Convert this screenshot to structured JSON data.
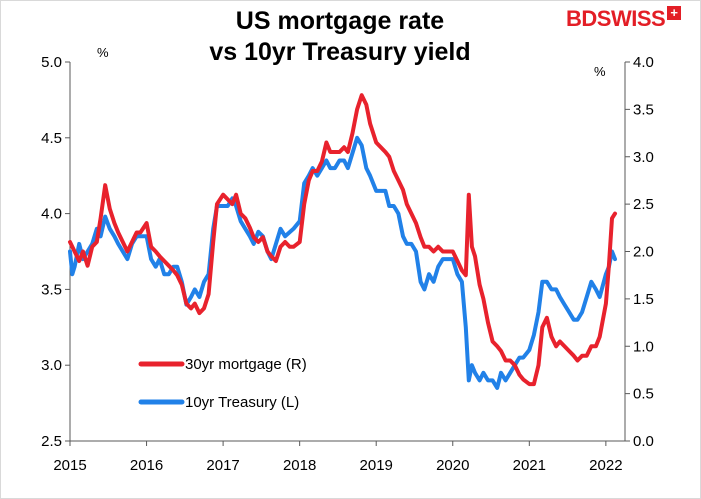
{
  "title_lines": [
    "US mortgage rate",
    "vs 10yr Treasury yield"
  ],
  "brand": {
    "text": "BDSWISS",
    "plus": "+",
    "color": "#e31e26"
  },
  "chart_data": {
    "type": "line",
    "title": "US mortgage rate vs 10yr Treasury yield",
    "left_axis": {
      "unit": "%",
      "range": [
        2.5,
        5.0
      ],
      "ticks": [
        "2.5",
        "3.0",
        "3.5",
        "4.0",
        "4.5",
        "5.0"
      ]
    },
    "right_axis": {
      "unit": "%",
      "range": [
        0.0,
        4.0
      ],
      "ticks": [
        "0.0",
        "0.5",
        "1.0",
        "1.5",
        "2.0",
        "2.5",
        "3.0",
        "3.5",
        "4.0"
      ]
    },
    "x_axis": {
      "range": [
        2015,
        2022.25
      ],
      "ticks": [
        "2015",
        "2016",
        "2017",
        "2018",
        "2019",
        "2020",
        "2021",
        "2022"
      ]
    },
    "grid": false,
    "legend_placement": "lower-left",
    "series": [
      {
        "name": "30yr mortgage (R)",
        "axis": "right",
        "color": "#e8222d",
        "points": [
          [
            2015.0,
            2.1
          ],
          [
            2015.06,
            2.0
          ],
          [
            2015.12,
            1.9
          ],
          [
            2015.17,
            2.0
          ],
          [
            2015.23,
            1.85
          ],
          [
            2015.29,
            2.05
          ],
          [
            2015.35,
            2.1
          ],
          [
            2015.4,
            2.35
          ],
          [
            2015.46,
            2.7
          ],
          [
            2015.52,
            2.45
          ],
          [
            2015.58,
            2.3
          ],
          [
            2015.63,
            2.2
          ],
          [
            2015.69,
            2.1
          ],
          [
            2015.75,
            2.0
          ],
          [
            2015.81,
            2.1
          ],
          [
            2015.87,
            2.2
          ],
          [
            2015.92,
            2.2
          ],
          [
            2016.0,
            2.3
          ],
          [
            2016.06,
            2.05
          ],
          [
            2016.12,
            2.0
          ],
          [
            2016.17,
            1.95
          ],
          [
            2016.23,
            1.9
          ],
          [
            2016.29,
            1.85
          ],
          [
            2016.35,
            1.8
          ],
          [
            2016.4,
            1.75
          ],
          [
            2016.46,
            1.65
          ],
          [
            2016.52,
            1.45
          ],
          [
            2016.58,
            1.4
          ],
          [
            2016.63,
            1.45
          ],
          [
            2016.69,
            1.35
          ],
          [
            2016.75,
            1.4
          ],
          [
            2016.81,
            1.55
          ],
          [
            2016.87,
            2.1
          ],
          [
            2016.92,
            2.5
          ],
          [
            2017.0,
            2.6
          ],
          [
            2017.06,
            2.55
          ],
          [
            2017.12,
            2.5
          ],
          [
            2017.17,
            2.6
          ],
          [
            2017.23,
            2.4
          ],
          [
            2017.29,
            2.35
          ],
          [
            2017.35,
            2.25
          ],
          [
            2017.4,
            2.15
          ],
          [
            2017.46,
            2.1
          ],
          [
            2017.52,
            2.15
          ],
          [
            2017.58,
            2.0
          ],
          [
            2017.63,
            1.95
          ],
          [
            2017.69,
            1.9
          ],
          [
            2017.75,
            2.05
          ],
          [
            2017.81,
            2.1
          ],
          [
            2017.87,
            2.05
          ],
          [
            2017.92,
            2.05
          ],
          [
            2018.0,
            2.1
          ],
          [
            2018.06,
            2.5
          ],
          [
            2018.12,
            2.75
          ],
          [
            2018.17,
            2.85
          ],
          [
            2018.23,
            2.85
          ],
          [
            2018.29,
            2.95
          ],
          [
            2018.35,
            3.15
          ],
          [
            2018.4,
            3.05
          ],
          [
            2018.46,
            3.05
          ],
          [
            2018.52,
            3.05
          ],
          [
            2018.58,
            3.1
          ],
          [
            2018.63,
            3.05
          ],
          [
            2018.69,
            3.25
          ],
          [
            2018.75,
            3.5
          ],
          [
            2018.81,
            3.65
          ],
          [
            2018.87,
            3.55
          ],
          [
            2018.92,
            3.35
          ],
          [
            2019.0,
            3.15
          ],
          [
            2019.06,
            3.1
          ],
          [
            2019.12,
            3.05
          ],
          [
            2019.17,
            3.0
          ],
          [
            2019.23,
            2.85
          ],
          [
            2019.29,
            2.75
          ],
          [
            2019.35,
            2.65
          ],
          [
            2019.4,
            2.5
          ],
          [
            2019.46,
            2.4
          ],
          [
            2019.52,
            2.3
          ],
          [
            2019.58,
            2.15
          ],
          [
            2019.63,
            2.05
          ],
          [
            2019.69,
            2.05
          ],
          [
            2019.75,
            2.0
          ],
          [
            2019.81,
            2.05
          ],
          [
            2019.87,
            2.0
          ],
          [
            2019.92,
            2.0
          ],
          [
            2020.0,
            2.0
          ],
          [
            2020.06,
            1.9
          ],
          [
            2020.12,
            1.8
          ],
          [
            2020.17,
            1.75
          ],
          [
            2020.21,
            2.6
          ],
          [
            2020.25,
            2.05
          ],
          [
            2020.29,
            1.95
          ],
          [
            2020.35,
            1.65
          ],
          [
            2020.4,
            1.5
          ],
          [
            2020.46,
            1.25
          ],
          [
            2020.52,
            1.05
          ],
          [
            2020.58,
            1.0
          ],
          [
            2020.63,
            0.95
          ],
          [
            2020.69,
            0.85
          ],
          [
            2020.75,
            0.85
          ],
          [
            2020.81,
            0.8
          ],
          [
            2020.87,
            0.7
          ],
          [
            2020.92,
            0.65
          ],
          [
            2021.0,
            0.6
          ],
          [
            2021.06,
            0.6
          ],
          [
            2021.12,
            0.8
          ],
          [
            2021.17,
            1.2
          ],
          [
            2021.23,
            1.3
          ],
          [
            2021.29,
            1.1
          ],
          [
            2021.35,
            1.0
          ],
          [
            2021.4,
            1.05
          ],
          [
            2021.46,
            1.0
          ],
          [
            2021.52,
            0.95
          ],
          [
            2021.58,
            0.9
          ],
          [
            2021.63,
            0.85
          ],
          [
            2021.69,
            0.9
          ],
          [
            2021.75,
            0.9
          ],
          [
            2021.81,
            1.0
          ],
          [
            2021.87,
            1.0
          ],
          [
            2021.92,
            1.1
          ],
          [
            2022.0,
            1.45
          ],
          [
            2022.04,
            1.85
          ],
          [
            2022.08,
            2.35
          ],
          [
            2022.12,
            2.4
          ]
        ]
      },
      {
        "name": "10yr Treasury (L)",
        "axis": "left",
        "color": "#2181e8",
        "points": [
          [
            2015.0,
            3.75
          ],
          [
            2015.03,
            3.6
          ],
          [
            2015.06,
            3.65
          ],
          [
            2015.12,
            3.8
          ],
          [
            2015.17,
            3.7
          ],
          [
            2015.23,
            3.75
          ],
          [
            2015.29,
            3.8
          ],
          [
            2015.35,
            3.9
          ],
          [
            2015.4,
            3.85
          ],
          [
            2015.46,
            3.98
          ],
          [
            2015.52,
            3.9
          ],
          [
            2015.58,
            3.85
          ],
          [
            2015.63,
            3.8
          ],
          [
            2015.69,
            3.75
          ],
          [
            2015.75,
            3.7
          ],
          [
            2015.81,
            3.8
          ],
          [
            2015.87,
            3.85
          ],
          [
            2015.92,
            3.85
          ],
          [
            2016.0,
            3.85
          ],
          [
            2016.06,
            3.7
          ],
          [
            2016.12,
            3.65
          ],
          [
            2016.17,
            3.7
          ],
          [
            2016.23,
            3.6
          ],
          [
            2016.29,
            3.6
          ],
          [
            2016.35,
            3.65
          ],
          [
            2016.4,
            3.65
          ],
          [
            2016.46,
            3.55
          ],
          [
            2016.52,
            3.4
          ],
          [
            2016.58,
            3.45
          ],
          [
            2016.63,
            3.5
          ],
          [
            2016.69,
            3.45
          ],
          [
            2016.75,
            3.55
          ],
          [
            2016.81,
            3.6
          ],
          [
            2016.87,
            3.9
          ],
          [
            2016.92,
            4.05
          ],
          [
            2017.0,
            4.05
          ],
          [
            2017.06,
            4.05
          ],
          [
            2017.12,
            4.1
          ],
          [
            2017.17,
            4.05
          ],
          [
            2017.23,
            3.95
          ],
          [
            2017.29,
            3.9
          ],
          [
            2017.35,
            3.85
          ],
          [
            2017.4,
            3.8
          ],
          [
            2017.46,
            3.88
          ],
          [
            2017.52,
            3.85
          ],
          [
            2017.58,
            3.75
          ],
          [
            2017.63,
            3.7
          ],
          [
            2017.69,
            3.8
          ],
          [
            2017.75,
            3.9
          ],
          [
            2017.81,
            3.85
          ],
          [
            2017.92,
            3.9
          ],
          [
            2018.0,
            3.95
          ],
          [
            2018.06,
            4.2
          ],
          [
            2018.12,
            4.25
          ],
          [
            2018.17,
            4.3
          ],
          [
            2018.23,
            4.25
          ],
          [
            2018.29,
            4.3
          ],
          [
            2018.35,
            4.35
          ],
          [
            2018.4,
            4.3
          ],
          [
            2018.46,
            4.3
          ],
          [
            2018.52,
            4.35
          ],
          [
            2018.58,
            4.35
          ],
          [
            2018.63,
            4.3
          ],
          [
            2018.69,
            4.4
          ],
          [
            2018.75,
            4.5
          ],
          [
            2018.81,
            4.45
          ],
          [
            2018.87,
            4.3
          ],
          [
            2018.92,
            4.25
          ],
          [
            2019.0,
            4.15
          ],
          [
            2019.06,
            4.15
          ],
          [
            2019.12,
            4.15
          ],
          [
            2019.17,
            4.05
          ],
          [
            2019.23,
            4.05
          ],
          [
            2019.29,
            4.0
          ],
          [
            2019.35,
            3.85
          ],
          [
            2019.4,
            3.8
          ],
          [
            2019.46,
            3.8
          ],
          [
            2019.52,
            3.75
          ],
          [
            2019.58,
            3.55
          ],
          [
            2019.63,
            3.5
          ],
          [
            2019.69,
            3.6
          ],
          [
            2019.75,
            3.55
          ],
          [
            2019.81,
            3.65
          ],
          [
            2019.87,
            3.7
          ],
          [
            2019.92,
            3.7
          ],
          [
            2020.0,
            3.7
          ],
          [
            2020.06,
            3.6
          ],
          [
            2020.12,
            3.55
          ],
          [
            2020.17,
            3.25
          ],
          [
            2020.21,
            2.9
          ],
          [
            2020.25,
            3.0
          ],
          [
            2020.29,
            2.95
          ],
          [
            2020.35,
            2.9
          ],
          [
            2020.4,
            2.95
          ],
          [
            2020.46,
            2.9
          ],
          [
            2020.52,
            2.9
          ],
          [
            2020.58,
            2.85
          ],
          [
            2020.63,
            2.95
          ],
          [
            2020.69,
            2.9
          ],
          [
            2020.75,
            2.95
          ],
          [
            2020.81,
            3.0
          ],
          [
            2020.87,
            3.05
          ],
          [
            2020.92,
            3.05
          ],
          [
            2021.0,
            3.1
          ],
          [
            2021.06,
            3.2
          ],
          [
            2021.12,
            3.35
          ],
          [
            2021.17,
            3.55
          ],
          [
            2021.23,
            3.55
          ],
          [
            2021.29,
            3.5
          ],
          [
            2021.35,
            3.5
          ],
          [
            2021.4,
            3.45
          ],
          [
            2021.46,
            3.4
          ],
          [
            2021.52,
            3.35
          ],
          [
            2021.58,
            3.3
          ],
          [
            2021.63,
            3.3
          ],
          [
            2021.69,
            3.35
          ],
          [
            2021.75,
            3.45
          ],
          [
            2021.81,
            3.55
          ],
          [
            2021.87,
            3.5
          ],
          [
            2021.92,
            3.45
          ],
          [
            2022.0,
            3.6
          ],
          [
            2022.04,
            3.65
          ],
          [
            2022.08,
            3.75
          ],
          [
            2022.12,
            3.7
          ]
        ]
      }
    ]
  }
}
